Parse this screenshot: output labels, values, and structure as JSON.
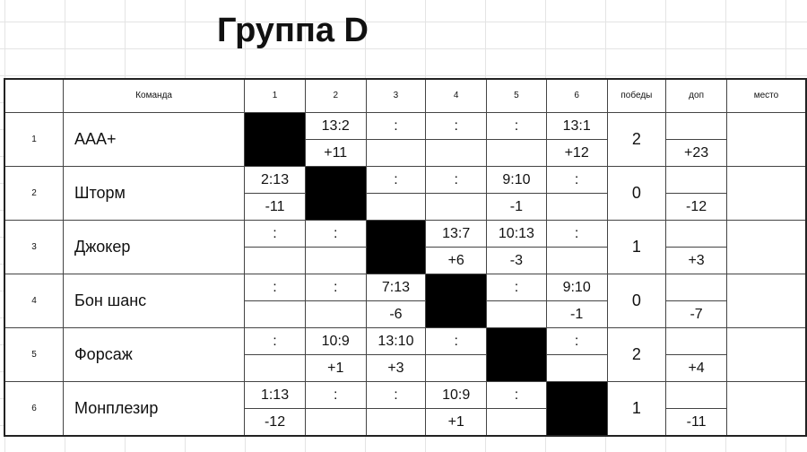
{
  "title": "Группа D",
  "header": {
    "team": "Команда",
    "cols": [
      "1",
      "2",
      "3",
      "4",
      "5",
      "6"
    ],
    "wins": "победы",
    "extra": "доп",
    "place": "место"
  },
  "rows": [
    {
      "num": "1",
      "team": "ААА+",
      "scores": [
        "",
        "13:2",
        ":",
        ":",
        ":",
        "13:1"
      ],
      "diffs": [
        "",
        "+11",
        "",
        "",
        "",
        "+12"
      ],
      "wins": "2",
      "extra_top": "",
      "extra_bottom": "+23",
      "place": ""
    },
    {
      "num": "2",
      "team": "Шторм",
      "scores": [
        "2:13",
        "",
        ":",
        ":",
        "9:10",
        ":"
      ],
      "diffs": [
        "-11",
        "",
        "",
        "",
        "-1",
        ""
      ],
      "wins": "0",
      "extra_top": "",
      "extra_bottom": "-12",
      "place": ""
    },
    {
      "num": "3",
      "team": "Джокер",
      "scores": [
        ":",
        ":",
        "",
        "13:7",
        "10:13",
        ":"
      ],
      "diffs": [
        "",
        "",
        "",
        "+6",
        "-3",
        ""
      ],
      "wins": "1",
      "extra_top": "",
      "extra_bottom": "+3",
      "place": ""
    },
    {
      "num": "4",
      "team": "Бон шанс",
      "scores": [
        ":",
        ":",
        "7:13",
        "",
        ":",
        "9:10"
      ],
      "diffs": [
        "",
        "",
        "-6",
        "",
        "",
        "-1"
      ],
      "wins": "0",
      "extra_top": "",
      "extra_bottom": "-7",
      "place": ""
    },
    {
      "num": "5",
      "team": "Форсаж",
      "scores": [
        ":",
        "10:9",
        "13:10",
        ":",
        "",
        ":"
      ],
      "diffs": [
        "",
        "+1",
        "+3",
        "",
        "",
        ""
      ],
      "wins": "2",
      "extra_top": "",
      "extra_bottom": "+4",
      "place": ""
    },
    {
      "num": "6",
      "team": "Монплезир",
      "scores": [
        "1:13",
        ":",
        ":",
        "10:9",
        ":",
        ""
      ],
      "diffs": [
        "-12",
        "",
        "",
        "+1",
        "",
        ""
      ],
      "wins": "1",
      "extra_top": "",
      "extra_bottom": "-11",
      "place": ""
    }
  ]
}
